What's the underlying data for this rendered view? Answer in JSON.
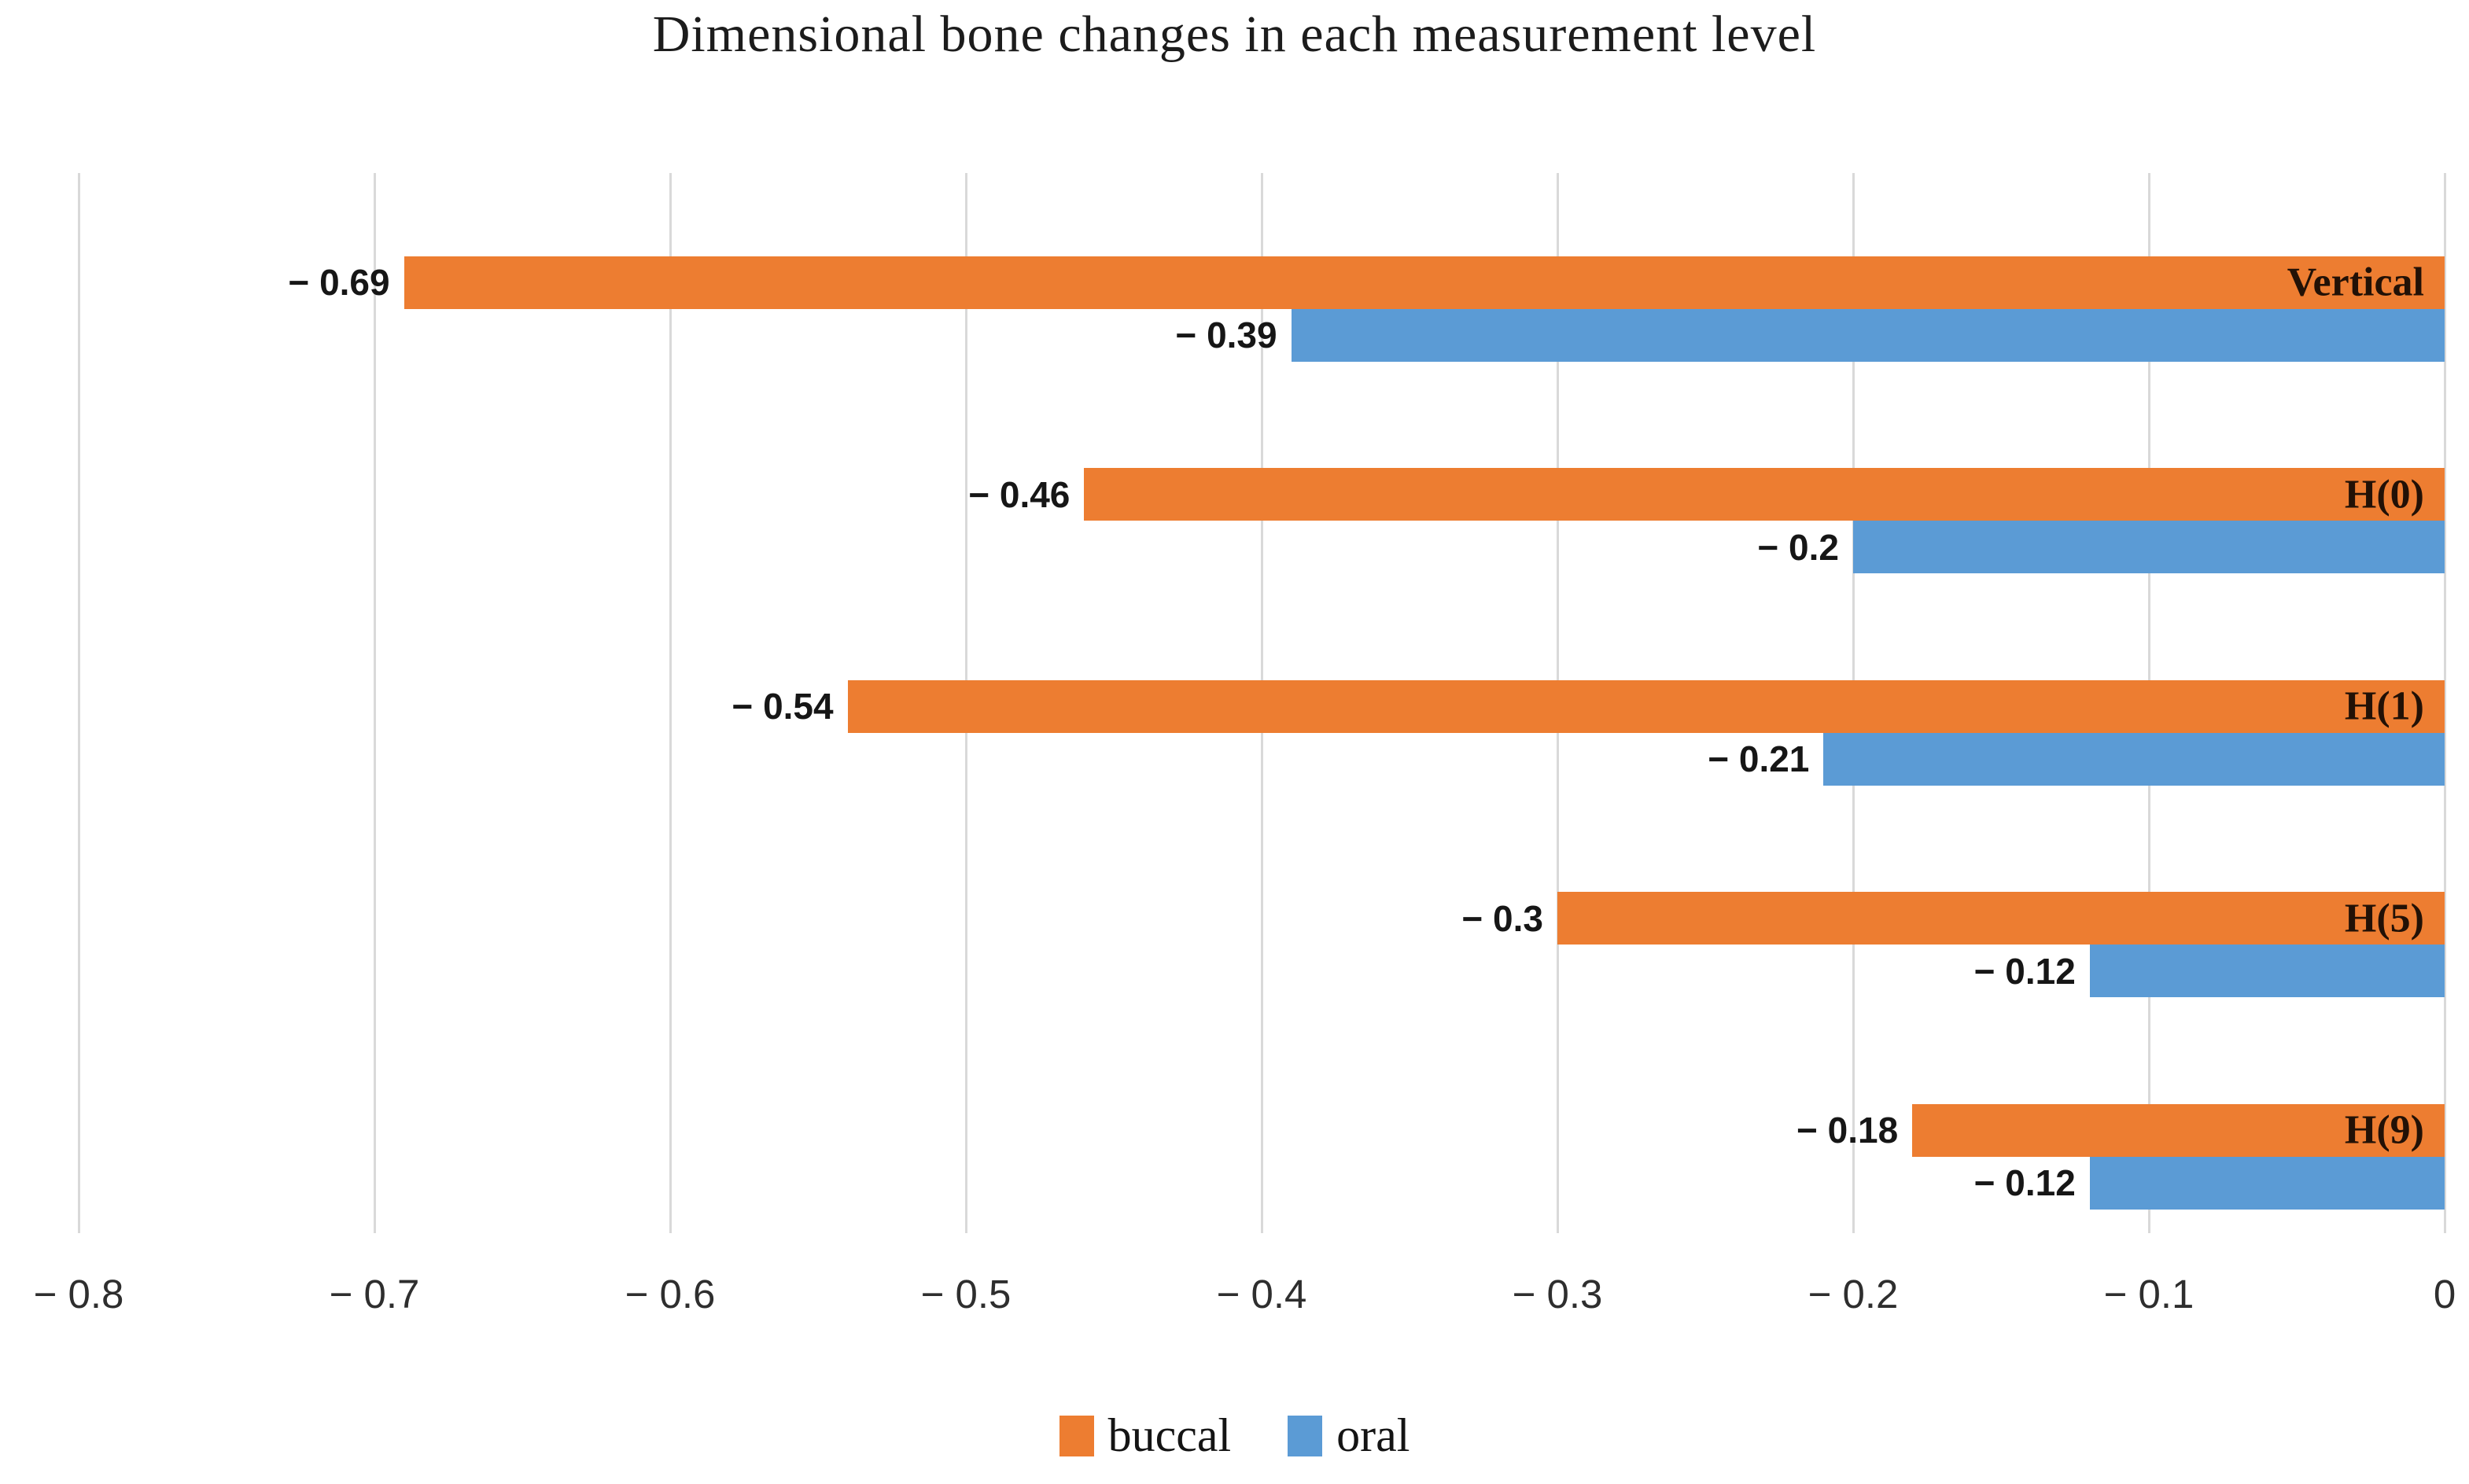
{
  "chart_data": {
    "type": "bar",
    "orientation": "horizontal",
    "title": "Dimensional bone changes in each measurement level",
    "categories": [
      "Vertical",
      "H(0)",
      "H(1)",
      "H(5)",
      "H(9)"
    ],
    "series": [
      {
        "name": "buccal",
        "color": "#ED7D31",
        "values": [
          -0.69,
          -0.46,
          -0.54,
          -0.3,
          -0.18
        ],
        "labels": [
          "− 0.69",
          "− 0.46",
          "− 0.54",
          "− 0.3",
          "− 0.18"
        ]
      },
      {
        "name": "oral",
        "color": "#5B9BD5",
        "values": [
          -0.39,
          -0.2,
          -0.21,
          -0.12,
          -0.12
        ],
        "labels": [
          "− 0.39",
          "− 0.2",
          "− 0.21",
          "− 0.12",
          "− 0.12"
        ]
      }
    ],
    "xlabel": "",
    "ylabel": "",
    "xlim": [
      -0.8,
      0
    ],
    "x_ticks": [
      -0.8,
      -0.7,
      -0.6,
      -0.5,
      -0.4,
      -0.3,
      -0.2,
      -0.1,
      0
    ],
    "x_tick_labels": [
      "− 0.8",
      "− 0.7",
      "− 0.6",
      "− 0.5",
      "− 0.4",
      "− 0.3",
      "− 0.2",
      "− 0.1",
      "0"
    ],
    "grid": true,
    "gridline_color": "#d9d9d9",
    "legend_position": "bottom",
    "value_label_color": "#161616",
    "category_label_color": "#221106"
  }
}
